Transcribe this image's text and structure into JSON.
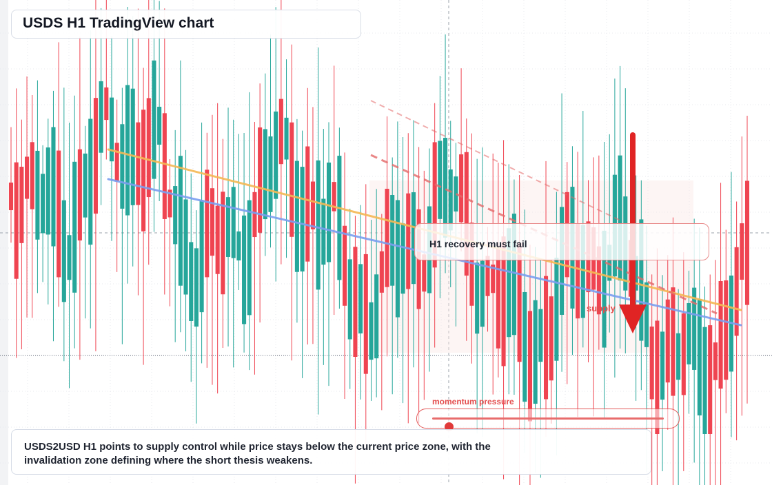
{
  "title": "USDS H1 TradingView chart",
  "callout": {
    "text": "H1 recovery must fail"
  },
  "labels": {
    "supply": "supply",
    "momentum": "momentum pressure"
  },
  "momentum": {
    "pressure": 0.07
  },
  "summary": "USDS2USD H1 points to supply control while price stays below the current price zone, with the invalidation zone defining where the short thesis weakens.",
  "colors": {
    "up": "#26a69a",
    "down": "#ef4451",
    "orange_line": "#f5b955",
    "blue_line": "#7b9ff0",
    "dashed_line": "#e46a6a",
    "arrow": "#e02424"
  },
  "chart_data": {
    "type": "candlestick",
    "title": "USDS H1 TradingView chart",
    "timeframe": "H1",
    "grid": true,
    "price_line": true,
    "candle_count": 140,
    "overlays": [
      "descending orange trendline",
      "descending blue trendline",
      "dashed red resistance lines",
      "supply zone",
      "downward arrow"
    ]
  }
}
